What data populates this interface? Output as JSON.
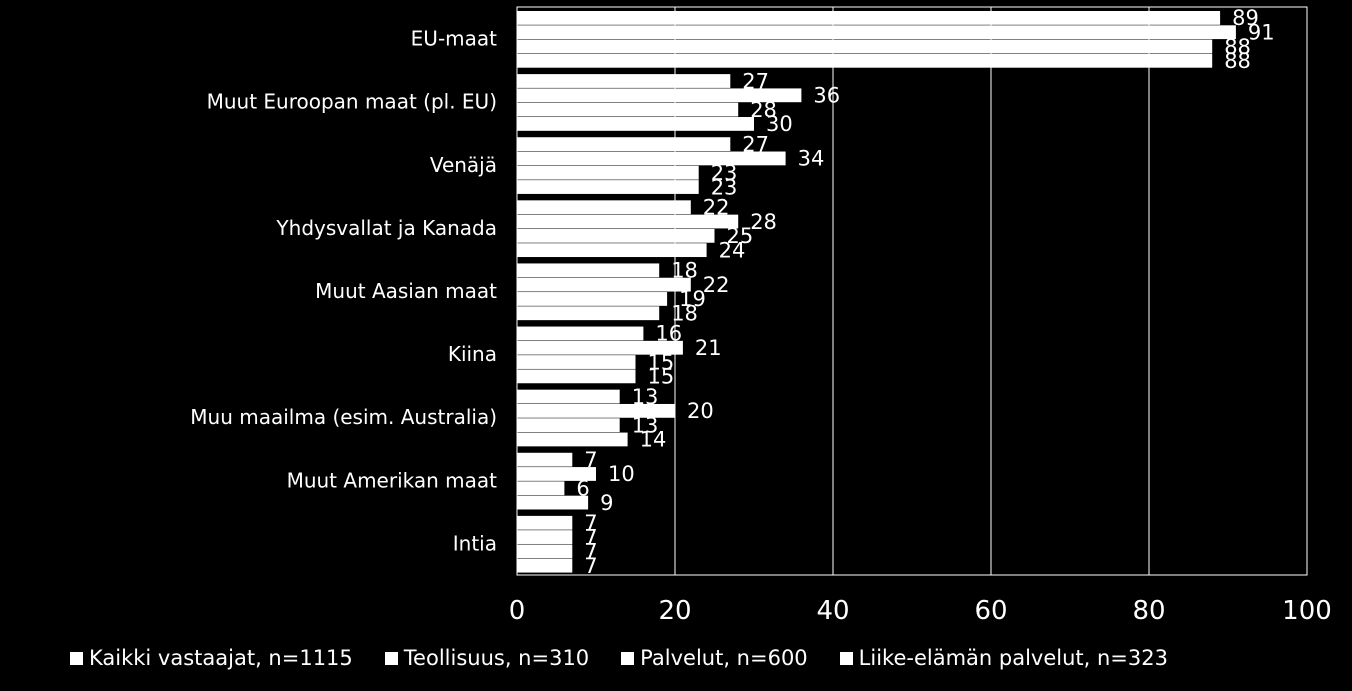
{
  "chart_data": {
    "type": "bar",
    "orientation": "horizontal",
    "categories": [
      "EU-maat",
      "Muut Euroopan maat (pl. EU)",
      "Venäjä",
      "Yhdysvallat ja Kanada",
      "Muut Aasian maat",
      "Kiina",
      "Muu maailma (esim. Australia)",
      "Muut Amerikan maat",
      "Intia"
    ],
    "series": [
      {
        "name": "Kaikki vastaajat, n=1115",
        "values": [
          89,
          27,
          27,
          22,
          18,
          16,
          13,
          7,
          7
        ]
      },
      {
        "name": "Teollisuus, n=310",
        "values": [
          91,
          36,
          34,
          28,
          22,
          21,
          20,
          10,
          7
        ]
      },
      {
        "name": "Palvelut, n=600",
        "values": [
          88,
          28,
          23,
          25,
          19,
          15,
          13,
          6,
          7
        ]
      },
      {
        "name": "Liike-elämän palvelut, n=323",
        "values": [
          88,
          30,
          23,
          24,
          18,
          15,
          14,
          9,
          7
        ]
      }
    ],
    "xlim": [
      0,
      100
    ],
    "xticks": [
      "0",
      "20",
      "40",
      "60",
      "80",
      "100"
    ],
    "grid": true,
    "legend_position": "bottom",
    "colors": {
      "background": "#000000",
      "bars": "#ffffff",
      "grid": "#ffffff",
      "text": "#ffffff"
    }
  }
}
